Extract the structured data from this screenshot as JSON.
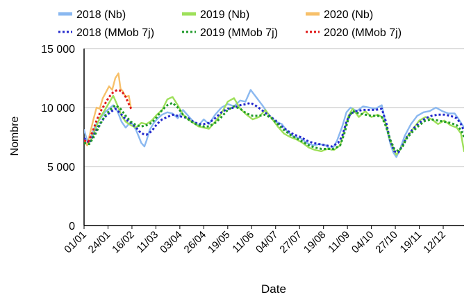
{
  "chart_data": {
    "type": "line",
    "title": "",
    "xlabel": "Date",
    "ylabel": "Nombre",
    "ylim": [
      0,
      15000
    ],
    "yticks": [
      0,
      5000,
      10000,
      15000
    ],
    "ytick_labels": [
      "0",
      "5 000",
      "10 000",
      "15 000"
    ],
    "xlim": [
      0,
      365
    ],
    "xticks": [
      0,
      23,
      46,
      69,
      92,
      115,
      138,
      161,
      184,
      207,
      230,
      253,
      276,
      299,
      322,
      345
    ],
    "xtick_labels": [
      "01/01",
      "24/01",
      "16/02",
      "11/03",
      "03/04",
      "26/04",
      "19/05",
      "11/06",
      "04/07",
      "27/07",
      "19/08",
      "11/09",
      "04/10",
      "27/10",
      "19/11",
      "12/12"
    ],
    "grid": "horizontal",
    "legend_position": "top",
    "series": [
      {
        "name": "2018 (Nb)",
        "style": "solid",
        "color": "#8ab8f0",
        "x": [
          0,
          3,
          7,
          11,
          15,
          20,
          24,
          28,
          32,
          36,
          40,
          45,
          50,
          55,
          58,
          60,
          63,
          67,
          71,
          75,
          80,
          85,
          90,
          95,
          100,
          105,
          110,
          115,
          120,
          126,
          132,
          138,
          144,
          150,
          155,
          160,
          166,
          172,
          178,
          184,
          190,
          196,
          202,
          208,
          214,
          220,
          226,
          232,
          238,
          243,
          248,
          252,
          256,
          262,
          268,
          274,
          280,
          286,
          290,
          294,
          297,
          300,
          304,
          308,
          314,
          320,
          326,
          332,
          338,
          344,
          350,
          356,
          360,
          365
        ],
        "y": [
          8100,
          7200,
          7600,
          8500,
          9000,
          9600,
          9900,
          10200,
          9700,
          8800,
          8300,
          8800,
          8100,
          7000,
          6700,
          7200,
          8100,
          8700,
          9100,
          9400,
          9600,
          9500,
          9100,
          9800,
          9300,
          8800,
          8500,
          9000,
          8600,
          9400,
          10000,
          10300,
          10100,
          10600,
          10500,
          11500,
          10800,
          10100,
          9300,
          8800,
          8600,
          7900,
          7500,
          7400,
          7000,
          6800,
          6900,
          6800,
          6400,
          7200,
          8400,
          9600,
          10000,
          9700,
          10100,
          10000,
          9900,
          10200,
          8500,
          7000,
          6200,
          5800,
          6600,
          7600,
          8600,
          9300,
          9600,
          9700,
          10000,
          9700,
          9500,
          9500,
          9000,
          8300
        ]
      },
      {
        "name": "2019 (Nb)",
        "style": "solid",
        "color": "#9ee05a",
        "x": [
          0,
          3,
          7,
          11,
          15,
          20,
          24,
          28,
          32,
          36,
          40,
          45,
          50,
          55,
          60,
          65,
          70,
          75,
          80,
          85,
          90,
          95,
          100,
          105,
          110,
          115,
          120,
          126,
          132,
          138,
          144,
          150,
          156,
          162,
          168,
          174,
          180,
          186,
          192,
          198,
          204,
          210,
          216,
          222,
          228,
          234,
          240,
          246,
          250,
          254,
          258,
          264,
          270,
          276,
          282,
          286,
          290,
          294,
          298,
          300,
          304,
          310,
          316,
          322,
          328,
          334,
          340,
          346,
          352,
          358,
          362,
          365
        ],
        "y": [
          7200,
          6800,
          7300,
          8200,
          9100,
          9800,
          10400,
          11000,
          10200,
          9300,
          8800,
          8500,
          8300,
          8700,
          8600,
          8900,
          9400,
          9800,
          10700,
          10900,
          10200,
          9400,
          9000,
          8700,
          8400,
          8300,
          8200,
          8800,
          9500,
          10500,
          10800,
          9900,
          9400,
          9000,
          9200,
          9800,
          9100,
          8400,
          7800,
          7500,
          7300,
          7000,
          6600,
          6400,
          6300,
          6500,
          6400,
          6800,
          8100,
          9300,
          9900,
          9200,
          9700,
          9200,
          9400,
          9200,
          8600,
          7200,
          6300,
          6000,
          6500,
          7500,
          8200,
          8900,
          9200,
          9000,
          8600,
          8900,
          8500,
          8300,
          7800,
          6300
        ]
      },
      {
        "name": "2020 (Nb)",
        "style": "solid",
        "color": "#f7c06a",
        "x": [
          0,
          3,
          6,
          9,
          12,
          15,
          18,
          21,
          24,
          27,
          30,
          33,
          35,
          37,
          40,
          43,
          45
        ],
        "y": [
          7300,
          6800,
          7900,
          9000,
          10000,
          9900,
          10800,
          11300,
          11800,
          11500,
          12500,
          12900,
          11600,
          11400,
          10900,
          11000,
          10000
        ]
      },
      {
        "name": "2018 (MMob 7j)",
        "style": "dotted",
        "color": "#2228cc",
        "x": [
          0,
          5,
          10,
          15,
          20,
          25,
          30,
          35,
          40,
          45,
          50,
          55,
          60,
          65,
          70,
          75,
          80,
          85,
          90,
          95,
          100,
          105,
          110,
          115,
          120,
          126,
          132,
          138,
          144,
          150,
          156,
          160,
          166,
          172,
          178,
          184,
          190,
          196,
          202,
          208,
          214,
          220,
          226,
          232,
          238,
          244,
          248,
          252,
          256,
          262,
          268,
          274,
          280,
          286,
          290,
          294,
          298,
          302,
          306,
          310,
          316,
          322,
          328,
          334,
          340,
          346,
          352,
          358,
          362,
          365
        ],
        "y": [
          7400,
          7000,
          7800,
          8600,
          9200,
          9600,
          9900,
          9500,
          9000,
          8700,
          8300,
          7800,
          7700,
          8000,
          8600,
          9000,
          9200,
          9400,
          9300,
          9200,
          9100,
          8800,
          8600,
          8600,
          8700,
          9100,
          9600,
          9900,
          10000,
          10200,
          10300,
          10400,
          10100,
          9700,
          9300,
          8900,
          8400,
          8000,
          7700,
          7500,
          7200,
          7000,
          6900,
          6800,
          6700,
          7000,
          7600,
          8800,
          9500,
          9700,
          9800,
          9800,
          9800,
          9900,
          8800,
          7200,
          6300,
          6200,
          6800,
          7500,
          8200,
          8700,
          9100,
          9300,
          9400,
          9400,
          9300,
          9100,
          8600,
          8000
        ]
      },
      {
        "name": "2019 (MMob 7j)",
        "style": "dotted",
        "color": "#1f9a2a",
        "x": [
          0,
          5,
          10,
          15,
          20,
          25,
          30,
          35,
          40,
          45,
          50,
          55,
          60,
          65,
          70,
          75,
          80,
          85,
          90,
          95,
          100,
          105,
          110,
          115,
          120,
          126,
          132,
          138,
          144,
          150,
          156,
          162,
          168,
          174,
          180,
          186,
          192,
          198,
          204,
          210,
          216,
          222,
          228,
          234,
          240,
          246,
          250,
          254,
          258,
          264,
          270,
          276,
          282,
          286,
          290,
          294,
          298,
          302,
          306,
          310,
          316,
          322,
          328,
          334,
          340,
          346,
          352,
          358,
          362,
          365
        ],
        "y": [
          7000,
          6900,
          7600,
          8500,
          9300,
          9800,
          10200,
          9900,
          9300,
          8800,
          8500,
          8400,
          8500,
          8700,
          9200,
          9800,
          10200,
          10400,
          10000,
          9400,
          9000,
          8700,
          8500,
          8400,
          8400,
          8700,
          9200,
          9800,
          10100,
          9900,
          9500,
          9300,
          9300,
          9400,
          9100,
          8600,
          8100,
          7700,
          7400,
          7100,
          6800,
          6600,
          6500,
          6500,
          6500,
          6800,
          7800,
          9100,
          9700,
          9500,
          9400,
          9300,
          9300,
          9200,
          8400,
          7300,
          6500,
          6300,
          6700,
          7400,
          8000,
          8500,
          8900,
          9000,
          8900,
          8800,
          8700,
          8500,
          8100,
          7500
        ]
      },
      {
        "name": "2020 (MMob 7j)",
        "style": "dotted",
        "color": "#e01818",
        "x": [
          0,
          4,
          8,
          12,
          16,
          20,
          24,
          28,
          32,
          36,
          40,
          44,
          46
        ],
        "y": [
          7200,
          7100,
          7900,
          8900,
          9700,
          10300,
          10900,
          11300,
          11500,
          11400,
          10900,
          10100,
          9800
        ]
      }
    ]
  }
}
